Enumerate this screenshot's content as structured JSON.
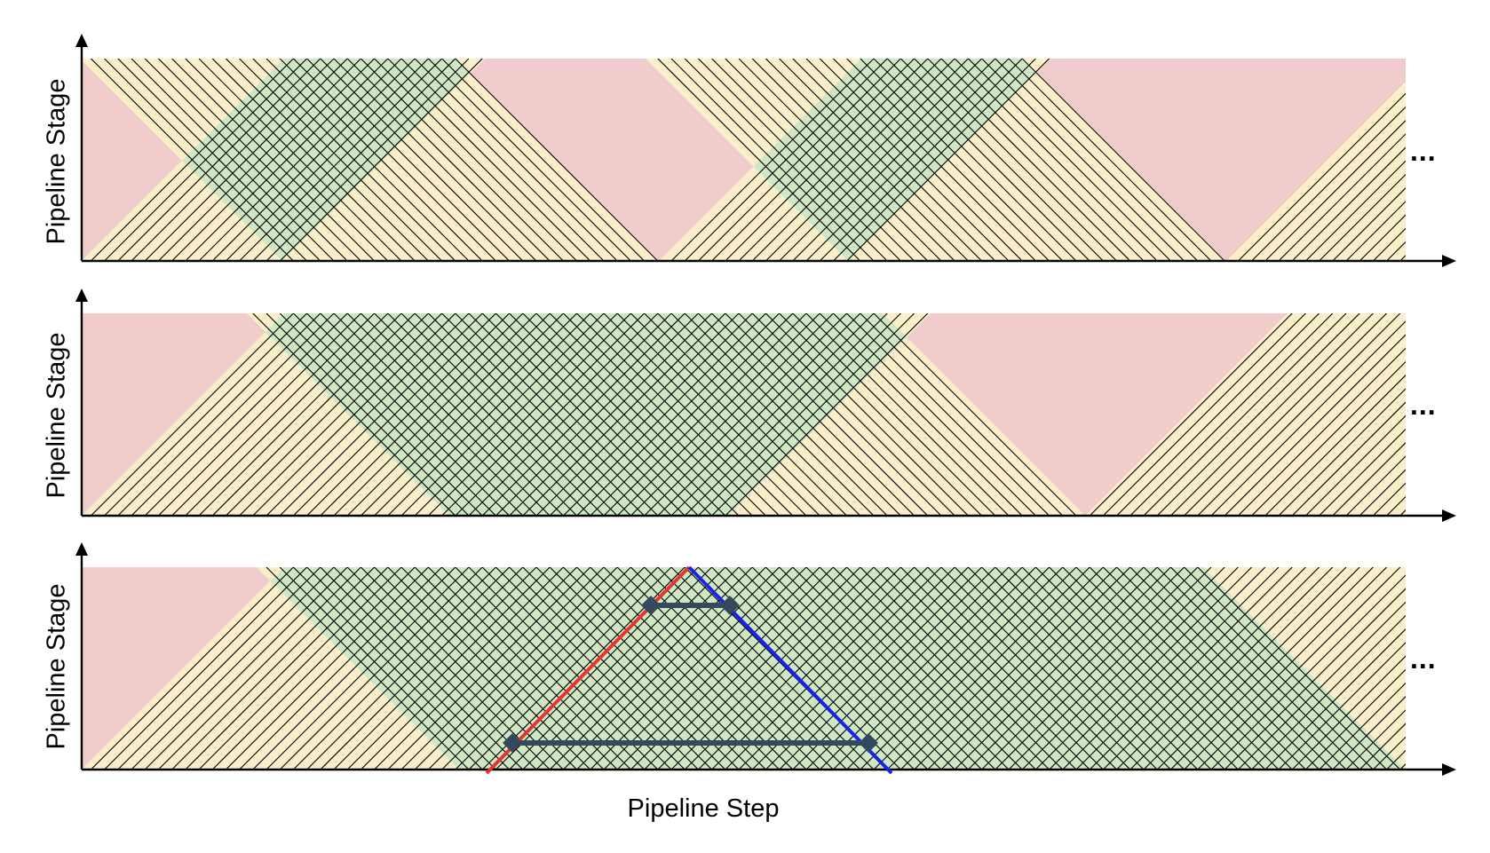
{
  "figure": {
    "panels": [
      {
        "y_label": "Pipeline Stage",
        "continuation": "..."
      },
      {
        "y_label": "Pipeline Stage",
        "continuation": "..."
      },
      {
        "y_label": "Pipeline Stage",
        "continuation": "..."
      }
    ],
    "x_label": "Pipeline Step",
    "colors": {
      "background": "#f0cccc",
      "single_hatch": "#fbefc9",
      "cross_hatch": "#cfe7c4",
      "hatch_line": "#000000",
      "red_line": "#e8342a",
      "blue_line": "#1a22e6",
      "marker": "#34495e"
    }
  }
}
